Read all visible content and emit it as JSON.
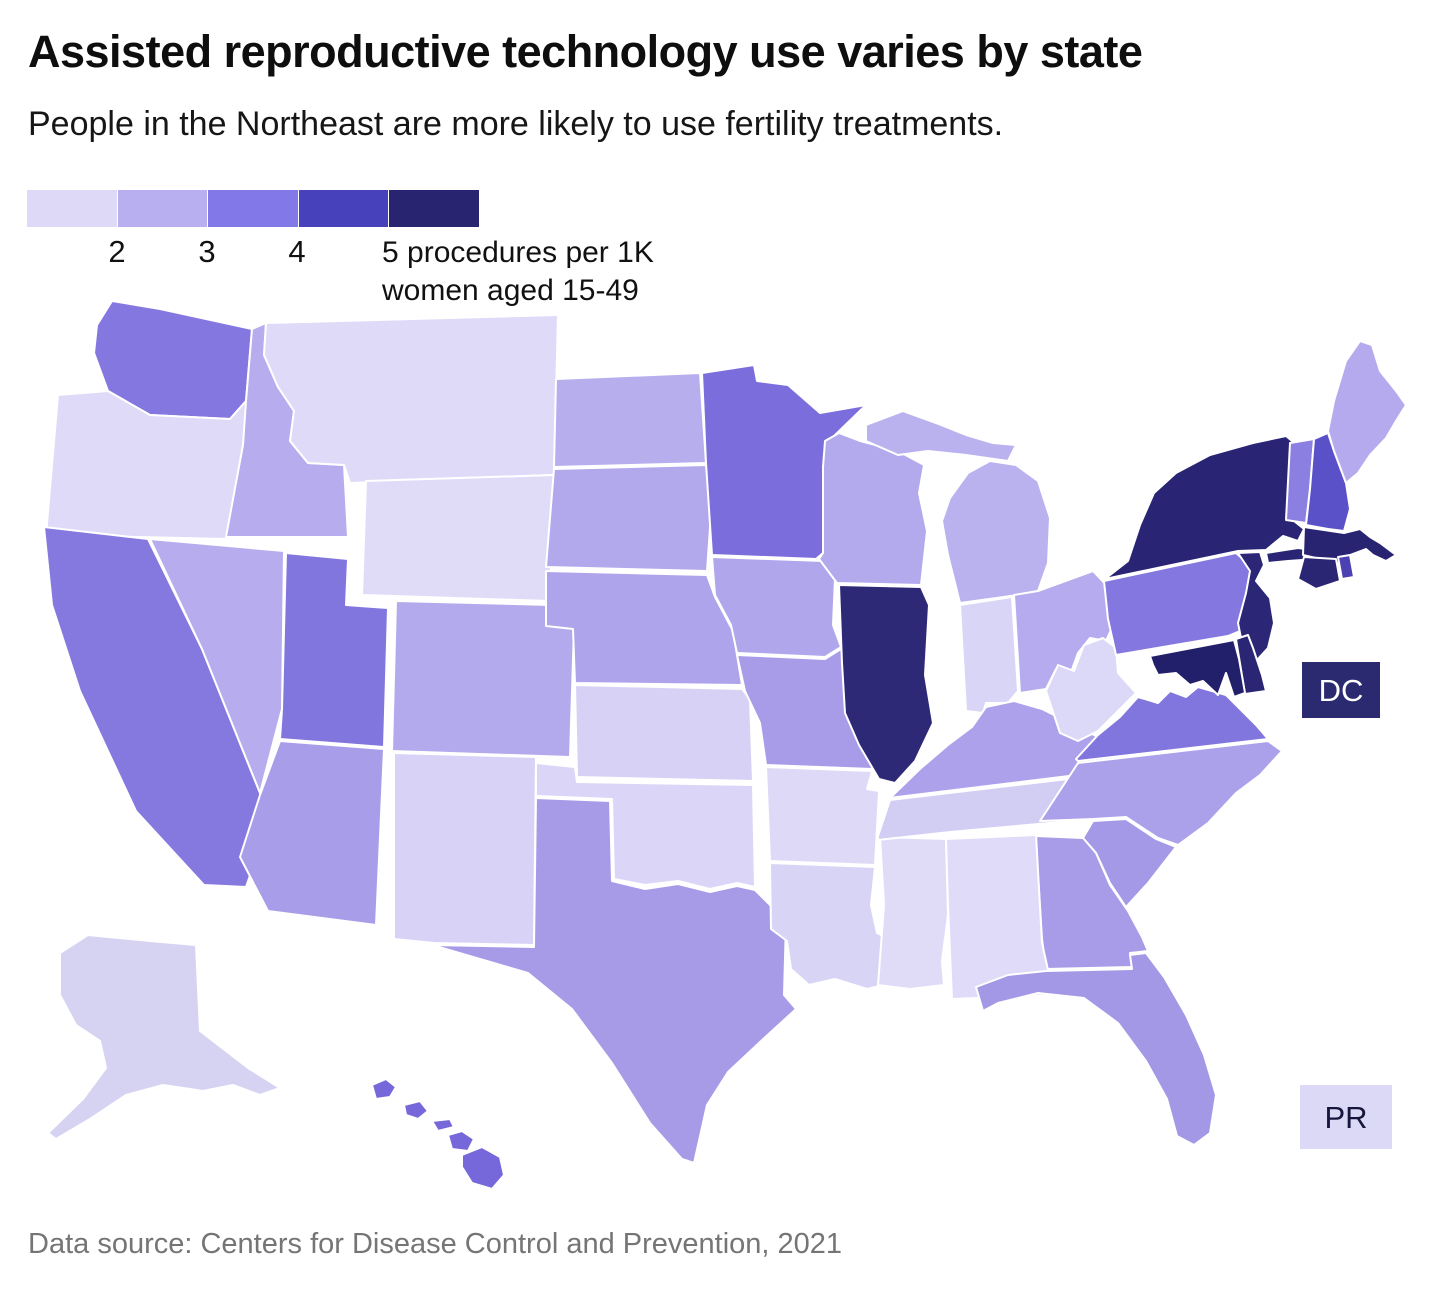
{
  "page": {
    "title": "Assisted reproductive technology use varies by state",
    "subtitle": "People in the Northeast are more likely to use fertility treatments.",
    "footer": "Data source: Centers for Disease Control and Prevention, 2021"
  },
  "legend": {
    "colors": [
      "#ded9f7",
      "#b8aff0",
      "#8378e8",
      "#4741bc",
      "#29246f"
    ],
    "ticks": [
      "2",
      "3",
      "4"
    ],
    "unit_lines": [
      "5 procedures per 1K",
      "women aged 15-49"
    ]
  },
  "labels": {
    "dc": "DC",
    "pr": "PR"
  },
  "chart_data": {
    "type": "choropleth-map",
    "region": "United States",
    "unit": "ART procedures per 1,000 women aged 15-49",
    "source": "Centers for Disease Control and Prevention, 2021",
    "legend_stops": [
      2,
      3,
      4,
      5
    ],
    "legend_bin_colors": [
      "#ded9f7",
      "#b8aff0",
      "#8378e8",
      "#4741bc",
      "#29246f"
    ],
    "states": {
      "WA": {
        "name": "Washington",
        "value": 3.4,
        "color": "#8478e0"
      },
      "OR": {
        "name": "Oregon",
        "value": 1.9,
        "color": "#dedaf8"
      },
      "CA": {
        "name": "California",
        "value": 3.4,
        "color": "#8579e0"
      },
      "ID": {
        "name": "Idaho",
        "value": 2.3,
        "color": "#b6acee"
      },
      "NV": {
        "name": "Nevada",
        "value": 2.2,
        "color": "#b7adee"
      },
      "UT": {
        "name": "Utah",
        "value": 3.4,
        "color": "#8175de"
      },
      "AZ": {
        "name": "Arizona",
        "value": 2.7,
        "color": "#a89de8"
      },
      "MT": {
        "name": "Montana",
        "value": 1.5,
        "color": "#dedaf8"
      },
      "WY": {
        "name": "Wyoming",
        "value": 1.4,
        "color": "#e0dcf8"
      },
      "CO": {
        "name": "Colorado",
        "value": 2.5,
        "color": "#b3a9ed"
      },
      "NM": {
        "name": "New Mexico",
        "value": 1.6,
        "color": "#d8d3f6"
      },
      "ND": {
        "name": "North Dakota",
        "value": 2.3,
        "color": "#b7aeee"
      },
      "SD": {
        "name": "South Dakota",
        "value": 2.5,
        "color": "#b2a8ec"
      },
      "NE": {
        "name": "Nebraska",
        "value": 2.6,
        "color": "#aea4eb"
      },
      "KS": {
        "name": "Kansas",
        "value": 1.8,
        "color": "#d7d2f5"
      },
      "OK": {
        "name": "Oklahoma",
        "value": 1.6,
        "color": "#dbd6f7"
      },
      "TX": {
        "name": "Texas",
        "value": 2.7,
        "color": "#a79be8"
      },
      "MN": {
        "name": "Minnesota",
        "value": 3.6,
        "color": "#7b6edc"
      },
      "IA": {
        "name": "Iowa",
        "value": 2.5,
        "color": "#b0a6ec"
      },
      "MO": {
        "name": "Missouri",
        "value": 2.8,
        "color": "#a89ce9"
      },
      "AR": {
        "name": "Arkansas",
        "value": 1.4,
        "color": "#ded9f7"
      },
      "LA": {
        "name": "Louisiana",
        "value": 1.7,
        "color": "#d8d4f5"
      },
      "WI": {
        "name": "Wisconsin",
        "value": 2.4,
        "color": "#b3a9ed"
      },
      "IL": {
        "name": "Illinois",
        "value": 5.2,
        "color": "#2d2977"
      },
      "MS": {
        "name": "Mississippi",
        "value": 1.3,
        "color": "#e0dcf8"
      },
      "MI": {
        "name": "Michigan",
        "value": 2.2,
        "color": "#bab1ef"
      },
      "IN": {
        "name": "Indiana",
        "value": 1.8,
        "color": "#d9d5f6"
      },
      "OH": {
        "name": "Ohio",
        "value": 2.4,
        "color": "#b5abee"
      },
      "KY": {
        "name": "Kentucky",
        "value": 2.6,
        "color": "#aca1ea"
      },
      "TN": {
        "name": "Tennessee",
        "value": 1.9,
        "color": "#d2cdf3"
      },
      "WV": {
        "name": "West Virginia",
        "value": 1.5,
        "color": "#dcd8f7"
      },
      "VA": {
        "name": "Virginia",
        "value": 3.4,
        "color": "#8175de"
      },
      "NC": {
        "name": "North Carolina",
        "value": 2.6,
        "color": "#aba0ea"
      },
      "SC": {
        "name": "South Carolina",
        "value": 2.9,
        "color": "#a399e7"
      },
      "GA": {
        "name": "Georgia",
        "value": 2.8,
        "color": "#a89ce9"
      },
      "AL": {
        "name": "Alabama",
        "value": 1.6,
        "color": "#dfdbf8"
      },
      "FL": {
        "name": "Florida",
        "value": 2.9,
        "color": "#a298e6"
      },
      "PA": {
        "name": "Pennsylvania",
        "value": 3.4,
        "color": "#8478e0"
      },
      "NY": {
        "name": "New York",
        "value": 5.6,
        "color": "#292574"
      },
      "NJ": {
        "name": "New Jersey",
        "value": 5.5,
        "color": "#2b2776"
      },
      "DE": {
        "name": "Delaware",
        "value": 5.4,
        "color": "#2a2673"
      },
      "MD": {
        "name": "Maryland",
        "value": 5.7,
        "color": "#221f6b"
      },
      "VT": {
        "name": "Vermont",
        "value": 3.2,
        "color": "#8b7fe2"
      },
      "NH": {
        "name": "New Hampshire",
        "value": 4.3,
        "color": "#5a50c8"
      },
      "ME": {
        "name": "Maine",
        "value": 2.4,
        "color": "#b4aaed"
      },
      "MA": {
        "name": "Massachusetts",
        "value": 5.8,
        "color": "#282472"
      },
      "RI": {
        "name": "Rhode Island",
        "value": 4.6,
        "color": "#4b41b2"
      },
      "CT": {
        "name": "Connecticut",
        "value": 5.4,
        "color": "#2b2673"
      },
      "AK": {
        "name": "Alaska",
        "value": 1.6,
        "color": "#d6d3f2"
      },
      "HI": {
        "name": "Hawaii",
        "value": 3.7,
        "color": "#7667da"
      },
      "DC": {
        "name": "District of Columbia",
        "value": 6.0,
        "color": "#2b2a70"
      },
      "PR": {
        "name": "Puerto Rico",
        "value": 1.5,
        "color": "#dcd9f6"
      }
    }
  }
}
